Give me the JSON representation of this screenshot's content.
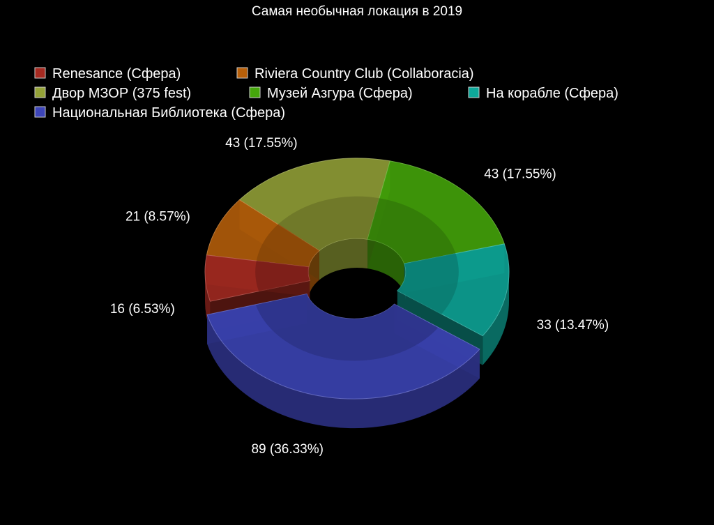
{
  "chart_data": {
    "type": "pie",
    "variant": "3d-donut",
    "title": "Самая необычная локация в 2019",
    "legend_position": "top-left",
    "start_angle_deg": 165,
    "exploded_slice": "Национальная Библиотека (Сфера)",
    "slices": [
      {
        "name": "Renesance (Сфера)",
        "value": 16,
        "percent_label": "16 (6.53%)",
        "color": "#a52a21"
      },
      {
        "name": "Riviera Country Club (Collaboracia)",
        "value": 21,
        "percent_label": "21 (8.57%)",
        "color": "#b8600a"
      },
      {
        "name": "Двор МЗОР (375 fest)",
        "value": 43,
        "percent_label": "43 (17.55%)",
        "color": "#94a238"
      },
      {
        "name": "Музей Азгура (Сфера)",
        "value": 43,
        "percent_label": "43 (17.55%)",
        "color": "#45a70b"
      },
      {
        "name": "На корабле (Сфера)",
        "value": 33,
        "percent_label": "33 (13.47%)",
        "color": "#0ea89a"
      },
      {
        "name": "Национальная Библиотека (Сфера)",
        "value": 89,
        "percent_label": "89 (36.33%)",
        "color": "#3d45b8"
      }
    ]
  }
}
